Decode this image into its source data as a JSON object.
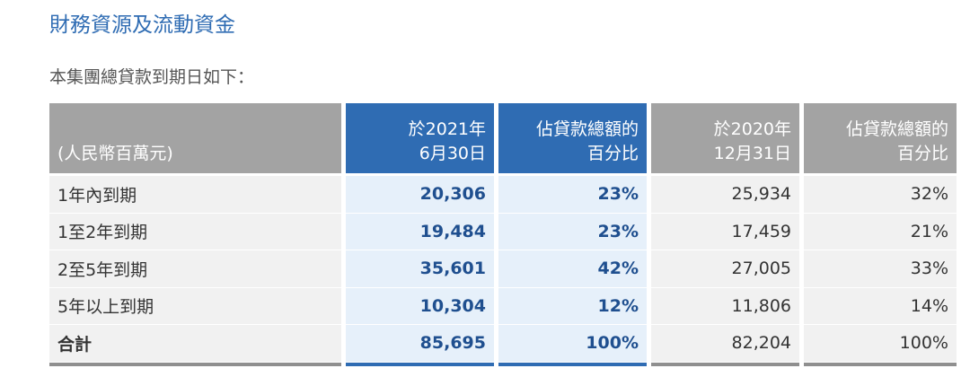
{
  "header": {
    "title": "財務資源及流動資金",
    "subtitle": "本集團總貸款到期日如下："
  },
  "table": {
    "columns": [
      {
        "lines": [
          "(人民幣百萬元)"
        ]
      },
      {
        "lines": [
          "於2021年",
          "6月30日"
        ]
      },
      {
        "lines": [
          "佔貸款總額的",
          "百分比"
        ]
      },
      {
        "lines": [
          "於2020年",
          "12月31日"
        ]
      },
      {
        "lines": [
          "佔貸款總額的",
          "百分比"
        ]
      }
    ],
    "rows": [
      [
        "1年內到期",
        "20,306",
        "23%",
        "25,934",
        "32%"
      ],
      [
        "1至2年到期",
        "19,484",
        "23%",
        "17,459",
        "21%"
      ],
      [
        "2至5年到期",
        "35,601",
        "42%",
        "27,005",
        "33%"
      ],
      [
        "5年以上到期",
        "10,304",
        "12%",
        "11,806",
        "14%"
      ],
      [
        "合計",
        "85,695",
        "100%",
        "82,204",
        "100%"
      ]
    ]
  }
}
